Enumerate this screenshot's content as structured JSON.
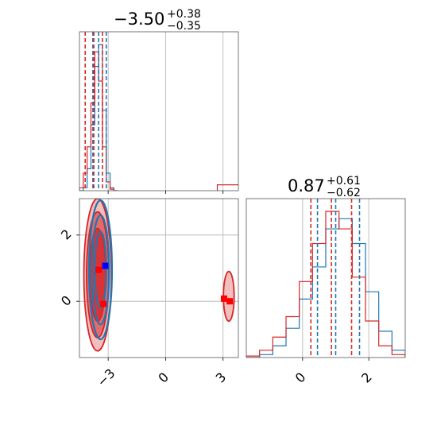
{
  "chart_data": {
    "type": "corner",
    "series": [
      {
        "name": "",
        "color": "#1f77b4"
      },
      {
        "name": "",
        "color": "#d62728"
      }
    ],
    "params": [
      {
        "index": 0,
        "title": {
          "median": "−3.50",
          "plus": "+0.38",
          "minus": "−0.35"
        },
        "range": [
          -4.5,
          3.8
        ],
        "ticks": [
          -3,
          0,
          3
        ],
        "tick_labels": [
          "−3",
          "0",
          "3"
        ],
        "quantiles": {
          "#1f77b4": [
            -3.8,
            -3.5,
            -3.1
          ],
          "#d62728": [
            -4.2,
            -3.75,
            -3.3
          ]
        },
        "hist": {
          "bin_edges": [
            -4.5,
            -4.3,
            -4.1,
            -3.9,
            -3.7,
            -3.5,
            -3.3,
            -3.1,
            -2.9,
            -2.7,
            -2.5
          ],
          "#1f77b4": [
            0.0,
            0.02,
            0.15,
            0.45,
            0.85,
            1.0,
            0.55,
            0.12,
            0.02,
            0.0
          ],
          "#d62728": [
            0.02,
            0.12,
            0.3,
            0.6,
            0.95,
            0.75,
            0.3,
            0.06,
            0.01,
            0.0
          ]
        },
        "hist_tail": {
          "x": [
            2.7,
            3.8
          ],
          "#d62728": 0.04
        }
      },
      {
        "index": 1,
        "title": {
          "median": "0.87",
          "plus": "+0.61",
          "minus": "−0.62"
        },
        "range": [
          -1.7,
          3.1
        ],
        "ticks": [
          0,
          2
        ],
        "tick_labels": [
          "0",
          "2"
        ],
        "quantiles": {
          "#1f77b4": [
            0.45,
            1.0,
            1.72
          ],
          "#d62728": [
            0.25,
            0.87,
            1.48
          ]
        },
        "hist": {
          "bin_edges": [
            -1.7,
            -1.3,
            -0.9,
            -0.5,
            -0.1,
            0.3,
            0.7,
            1.1,
            1.5,
            1.9,
            2.3,
            2.7,
            3.1
          ],
          "#1f77b4": [
            0.0,
            0.02,
            0.08,
            0.2,
            0.4,
            0.62,
            0.88,
            0.95,
            0.78,
            0.45,
            0.18,
            0.05
          ],
          "#d62728": [
            0.01,
            0.05,
            0.14,
            0.28,
            0.52,
            0.78,
            1.0,
            0.88,
            0.55,
            0.25,
            0.08,
            0.02
          ]
        }
      }
    ],
    "joint": {
      "x_range": [
        -4.5,
        3.8
      ],
      "y_range": [
        -1.7,
        3.1
      ],
      "contours": {
        "#d62728": [
          {
            "cx": -3.55,
            "cy": 0.8,
            "rx": 0.72,
            "ry": 2.3,
            "fill_opacity": 0.3
          },
          {
            "cx": -3.55,
            "cy": 0.8,
            "rx": 0.58,
            "ry": 1.9,
            "fill_opacity": 0.55
          },
          {
            "cx": -3.55,
            "cy": 0.8,
            "rx": 0.42,
            "ry": 1.4,
            "fill_opacity": 0.8
          },
          {
            "cx": 3.3,
            "cy": 0.15,
            "rx": 0.28,
            "ry": 0.75,
            "fill_opacity": 0.3
          }
        ],
        "#1f77b4": [
          {
            "cx": -3.4,
            "cy": 0.95,
            "rx": 0.6,
            "ry": 2.1
          },
          {
            "cx": -3.4,
            "cy": 0.95,
            "rx": 0.45,
            "ry": 1.65
          },
          {
            "cx": -3.4,
            "cy": 0.95,
            "rx": 0.3,
            "ry": 1.15
          }
        ]
      },
      "markers": [
        {
          "x": -3.15,
          "y": 1.07,
          "color": "#0000ff"
        },
        {
          "x": -3.5,
          "y": 0.95,
          "color": "#ff0000"
        },
        {
          "x": -3.25,
          "y": -0.08,
          "color": "#ff0000"
        },
        {
          "x": 3.05,
          "y": 0.08,
          "color": "#ff0000"
        },
        {
          "x": 3.35,
          "y": 0.0,
          "color": "#ff0000"
        }
      ]
    }
  }
}
